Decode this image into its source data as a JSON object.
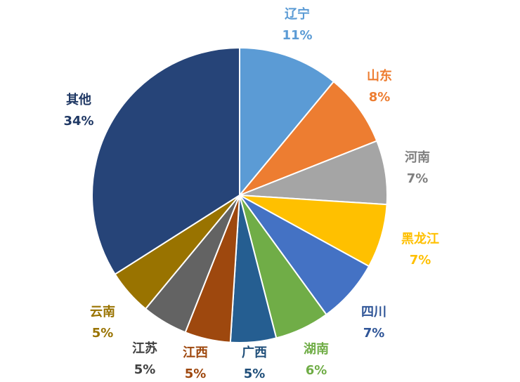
{
  "chart_data": {
    "type": "pie",
    "title": "",
    "start_angle_deg": 0,
    "direction": "clockwise",
    "slices": [
      {
        "label": "辽宁",
        "value": 11,
        "value_label": "11%",
        "color": "#5b9bd5",
        "label_color": "#5b9bd5"
      },
      {
        "label": "山东",
        "value": 8,
        "value_label": "8%",
        "color": "#ed7d31",
        "label_color": "#ed7d31"
      },
      {
        "label": "河南",
        "value": 7,
        "value_label": "7%",
        "color": "#a5a5a5",
        "label_color": "#7f7f7f"
      },
      {
        "label": "黑龙江",
        "value": 7,
        "value_label": "7%",
        "color": "#ffc000",
        "label_color": "#ffc000"
      },
      {
        "label": "四川",
        "value": 7,
        "value_label": "7%",
        "color": "#4472c4",
        "label_color": "#2f5597"
      },
      {
        "label": "湖南",
        "value": 6,
        "value_label": "6%",
        "color": "#70ad47",
        "label_color": "#70ad47"
      },
      {
        "label": "广西",
        "value": 5,
        "value_label": "5%",
        "color": "#255e91",
        "label_color": "#1f4e79"
      },
      {
        "label": "江西",
        "value": 5,
        "value_label": "5%",
        "color": "#9e480e",
        "label_color": "#9e480e"
      },
      {
        "label": "江苏",
        "value": 5,
        "value_label": "5%",
        "color": "#636363",
        "label_color": "#404040"
      },
      {
        "label": "云南",
        "value": 5,
        "value_label": "5%",
        "color": "#997300",
        "label_color": "#997300"
      },
      {
        "label": "其他",
        "value": 34,
        "value_label": "34%",
        "color": "#264478",
        "label_color": "#1f3864"
      }
    ]
  }
}
